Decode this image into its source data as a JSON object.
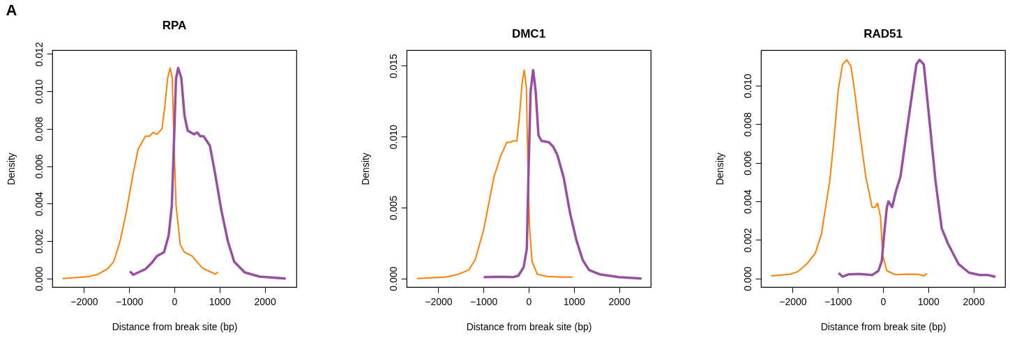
{
  "chart_data": [
    {
      "type": "line",
      "title": "RPA",
      "xlabel": "Distance from break site (bp)",
      "ylabel": "Density",
      "annotations": [
        "A"
      ],
      "xlim": [
        -2700,
        2700
      ],
      "ylim": [
        -0.00046,
        0.0122
      ],
      "xticks": [
        -2000,
        -1000,
        0,
        1000,
        2000
      ],
      "yticks": [
        {
          "value": 0,
          "label": "0.000"
        },
        {
          "value": 0.002,
          "label": "0.002"
        },
        {
          "value": 0.004,
          "label": "0.004"
        },
        {
          "value": 0.006,
          "label": "0.006"
        },
        {
          "value": 0.008,
          "label": "0.008"
        },
        {
          "value": 0.01,
          "label": "0.010"
        },
        {
          "value": 0.012,
          "label": "0.012"
        }
      ],
      "series": [
        {
          "color": "#ff7f00",
          "x": [
            -2461,
            -1901,
            -1714,
            -1481,
            -1340,
            -1200,
            -1060,
            -920,
            -803,
            -640,
            -546,
            -476,
            -383,
            -276,
            -220,
            -149,
            -93,
            -47,
            -9,
            37,
            131,
            224,
            388,
            621,
            808,
            901,
            958
          ],
          "values": [
            0.0,
            0.0001,
            0.0002,
            0.0005,
            0.0009,
            0.002,
            0.0036,
            0.0055,
            0.0069,
            0.0076,
            0.0076,
            0.0078,
            0.0077,
            0.008,
            0.009,
            0.0107,
            0.01125,
            0.0107,
            0.0073,
            0.0039,
            0.0018,
            0.0014,
            0.0012,
            0.00055,
            0.00034,
            0.00023,
            0.00032
          ]
        },
        {
          "color": "#984ea3",
          "x": [
            -967,
            -911,
            -780,
            -640,
            -500,
            -383,
            -229,
            -126,
            -56,
            -9,
            37,
            84,
            154,
            224,
            294,
            434,
            504,
            575,
            645,
            785,
            901,
            1042,
            1182,
            1322,
            1555,
            1882,
            2443
          ],
          "values": [
            0.00034,
            0.0002,
            0.00034,
            0.0005,
            0.00083,
            0.0012,
            0.0014,
            0.0023,
            0.0039,
            0.0073,
            0.0107,
            0.01125,
            0.0107,
            0.0087,
            0.0079,
            0.0077,
            0.0078,
            0.0076,
            0.0076,
            0.0071,
            0.0056,
            0.0036,
            0.002,
            0.0009,
            0.00032,
            0.0001,
            0.0
          ]
        }
      ]
    },
    {
      "type": "line",
      "title": "DMC1",
      "xlabel": "Distance from break site (bp)",
      "ylabel": "Density",
      "xlim": [
        -2700,
        2700
      ],
      "ylim": [
        -0.0006,
        0.0161
      ],
      "xticks": [
        -2000,
        -1000,
        0,
        1000,
        2000
      ],
      "yticks": [
        {
          "value": 0,
          "label": "0.000"
        },
        {
          "value": 0.005,
          "label": "0.005"
        },
        {
          "value": 0.01,
          "label": "0.010"
        },
        {
          "value": 0.015,
          "label": "0.015"
        }
      ],
      "series": [
        {
          "color": "#ff7f00",
          "x": [
            -2460,
            -1839,
            -1559,
            -1326,
            -1186,
            -999,
            -859,
            -765,
            -625,
            -485,
            -415,
            -336,
            -261,
            -205,
            -149,
            -98,
            -51,
            -19,
            19,
            75,
            191,
            401,
            728,
            961
          ],
          "values": [
            0.0,
            0.0001,
            0.0003,
            0.0006,
            0.0013,
            0.0034,
            0.0057,
            0.0072,
            0.0086,
            0.0096,
            0.0096,
            0.0097,
            0.0097,
            0.0114,
            0.0137,
            0.0147,
            0.0134,
            0.0081,
            0.0036,
            0.0012,
            0.0003,
            0.00015,
            0.0001,
            0.0001
          ]
        },
        {
          "color": "#984ea3",
          "x": [
            -975,
            -625,
            -345,
            -229,
            -112,
            -42,
            -5,
            42,
            98,
            154,
            215,
            285,
            448,
            541,
            635,
            775,
            915,
            1055,
            1195,
            1335,
            1568,
            1988,
            2478
          ],
          "values": [
            0.0001,
            0.00012,
            0.0001,
            0.0002,
            0.0008,
            0.0021,
            0.0074,
            0.0132,
            0.0147,
            0.0132,
            0.0101,
            0.0097,
            0.0096,
            0.0093,
            0.0087,
            0.0071,
            0.0046,
            0.0027,
            0.0013,
            0.0006,
            0.0003,
            0.0001,
            0.0
          ]
        }
      ]
    },
    {
      "type": "line",
      "title": "RAD51",
      "xlabel": "Distance from break site (bp)",
      "ylabel": "Density",
      "xlim": [
        -2700,
        2700
      ],
      "ylim": [
        -0.00044,
        0.01184
      ],
      "xticks": [
        -2000,
        -1000,
        0,
        1000,
        2000
      ],
      "yticks": [
        {
          "value": 0,
          "label": "0.000"
        },
        {
          "value": 0.002,
          "label": "0.002"
        },
        {
          "value": 0.004,
          "label": "0.004"
        },
        {
          "value": 0.006,
          "label": "0.006"
        },
        {
          "value": 0.008,
          "label": "0.008"
        },
        {
          "value": 0.01,
          "label": "0.010"
        }
      ],
      "series": [
        {
          "color": "#ff7f00",
          "x": [
            -2460,
            -2063,
            -1876,
            -1690,
            -1503,
            -1363,
            -1270,
            -1176,
            -1083,
            -990,
            -896,
            -803,
            -709,
            -616,
            -523,
            -383,
            -243,
            -173,
            -121,
            -56,
            -9,
            84,
            271,
            551,
            784,
            901,
            961
          ],
          "values": [
            0.00014,
            0.00022,
            0.00037,
            0.00075,
            0.0013,
            0.0023,
            0.0037,
            0.0051,
            0.0073,
            0.0098,
            0.0111,
            0.01134,
            0.011,
            0.0095,
            0.0077,
            0.0053,
            0.0037,
            0.0037,
            0.0039,
            0.0032,
            0.0012,
            0.0004,
            0.0002,
            0.00023,
            0.00022,
            0.00014,
            0.00025
          ]
        },
        {
          "color": "#984ea3",
          "x": [
            -966,
            -896,
            -756,
            -523,
            -243,
            -103,
            -28,
            28,
            84,
            121,
            201,
            294,
            387,
            504,
            644,
            737,
            807,
            901,
            1018,
            1158,
            1298,
            1438,
            1671,
            1904,
            2138,
            2325,
            2465
          ],
          "values": [
            0.00025,
            0.0001,
            0.00022,
            0.00024,
            0.00018,
            0.0004,
            0.0009,
            0.0024,
            0.0037,
            0.004,
            0.0037,
            0.0046,
            0.0053,
            0.0073,
            0.0096,
            0.0111,
            0.01134,
            0.0111,
            0.0084,
            0.0051,
            0.0026,
            0.0018,
            0.00075,
            0.0003,
            0.00018,
            0.00018,
            0.0001
          ]
        }
      ]
    }
  ]
}
